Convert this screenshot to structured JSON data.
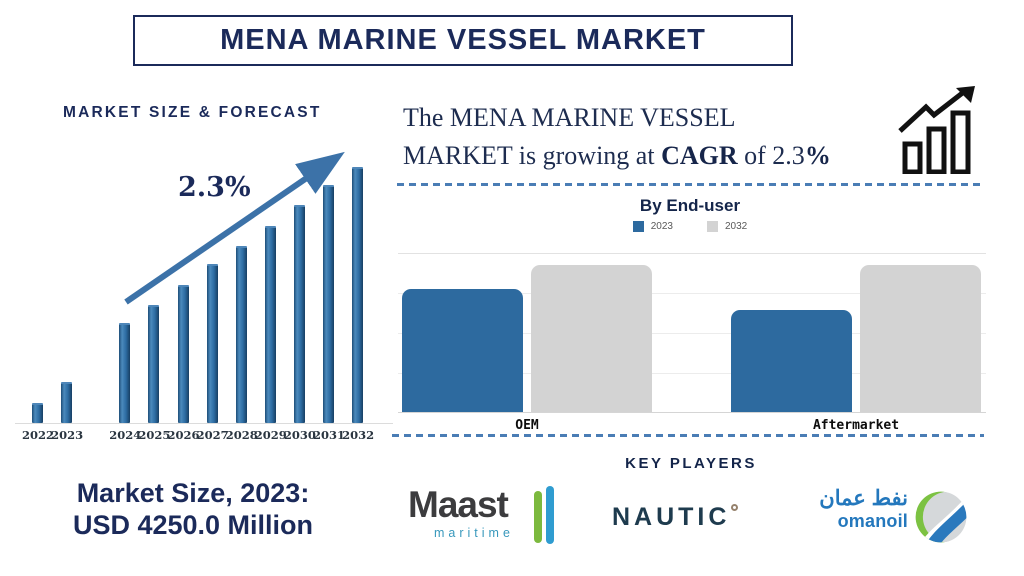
{
  "page": {
    "title_banner": "MENA MARINE VESSEL MARKET"
  },
  "left_panel": {
    "heading": "MARKET SIZE & FORECAST",
    "cagr_label": "2.3%",
    "market_size": {
      "line1": "Market Size, 2023:",
      "line2": "USD 4250.0 Million"
    }
  },
  "right_panel": {
    "statement": {
      "line1": "The MENA MARINE VESSEL",
      "line2_part1": "MARKET is growing at ",
      "line2_bold1": "CAGR",
      "line2_part2": " of 2.3",
      "line2_bold2": "%"
    },
    "key_players": {
      "heading": "KEY PLAYERS",
      "logos": [
        {
          "name": "Maast maritime",
          "text_main": "Maast",
          "text_sub": "maritime"
        },
        {
          "name": "Nautic",
          "text_main": "NAUTIC"
        },
        {
          "name": "Oman Oil",
          "text_arabic": "نفط عمان",
          "text_main": "omanoil"
        }
      ]
    }
  },
  "colors": {
    "navy": "#1b2a5a",
    "bar_blue": "#2e6da4",
    "bar_gray": "#d9d9d9",
    "arrow_blue": "#3c72a8",
    "dash_blue": "#4a7db5"
  },
  "chart_data": [
    {
      "name": "market-size-forecast",
      "type": "bar",
      "title": "MARKET SIZE & FORECAST",
      "categories": [
        "2022",
        "2023",
        "2024",
        "2025",
        "2026",
        "2027",
        "2028",
        "2029",
        "2030",
        "2031",
        "2032"
      ],
      "values_relative": [
        8,
        16,
        39,
        46,
        54,
        62,
        69,
        77,
        85,
        93,
        100
      ],
      "annotation": "2.3%",
      "bar_color": "#2e6da4",
      "ylabel": "",
      "xlabel": "",
      "note": "no y-axis shown; bar heights relative, 2032 bar = 100; gap between 2023 and 2024 groups; market size 2023 = USD 4250.0 Million, CAGR 2.3%"
    },
    {
      "name": "by-end-user",
      "type": "bar",
      "title": "By End-user",
      "categories": [
        "OEM",
        "Aftermarket"
      ],
      "series": [
        {
          "name": "2023",
          "color": "#2d6a9f",
          "values": [
            77,
            64
          ]
        },
        {
          "name": "2032",
          "color": "#d3d3d3",
          "values": [
            92,
            92
          ]
        }
      ],
      "legend_position": "top",
      "grid": true,
      "note": "no y-axis labels; values relative with top gridline = 100"
    }
  ]
}
